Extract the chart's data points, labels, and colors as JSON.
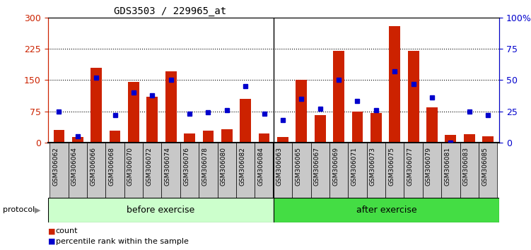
{
  "title": "GDS3503 / 229965_at",
  "samples": [
    "GSM306062",
    "GSM306064",
    "GSM306066",
    "GSM306068",
    "GSM306070",
    "GSM306072",
    "GSM306074",
    "GSM306076",
    "GSM306078",
    "GSM306080",
    "GSM306082",
    "GSM306084",
    "GSM306063",
    "GSM306065",
    "GSM306067",
    "GSM306069",
    "GSM306071",
    "GSM306073",
    "GSM306075",
    "GSM306077",
    "GSM306079",
    "GSM306081",
    "GSM306083",
    "GSM306085"
  ],
  "count": [
    30,
    14,
    180,
    28,
    145,
    110,
    170,
    22,
    28,
    32,
    105,
    22,
    13,
    150,
    65,
    220,
    75,
    70,
    280,
    220,
    85,
    18,
    20,
    15
  ],
  "percentile": [
    25,
    5,
    52,
    22,
    40,
    38,
    50,
    23,
    24,
    26,
    45,
    23,
    18,
    35,
    27,
    50,
    33,
    26,
    57,
    47,
    36,
    0,
    25,
    22
  ],
  "before_count": 12,
  "after_count": 12,
  "before_label": "before exercise",
  "after_label": "after exercise",
  "protocol_label": "protocol",
  "legend_count": "count",
  "legend_pct": "percentile rank within the sample",
  "ylim_left": [
    0,
    300
  ],
  "ylim_right": [
    0,
    100
  ],
  "yticks_left": [
    0,
    75,
    150,
    225,
    300
  ],
  "yticks_right": [
    0,
    25,
    50,
    75,
    100
  ],
  "bar_color": "#cc2200",
  "dot_color": "#0000cc",
  "before_bg": "#ccffcc",
  "after_bg": "#44dd44",
  "left_axis_color": "#cc2200",
  "right_axis_color": "#0000cc",
  "grid_lines": [
    75,
    150,
    225
  ]
}
